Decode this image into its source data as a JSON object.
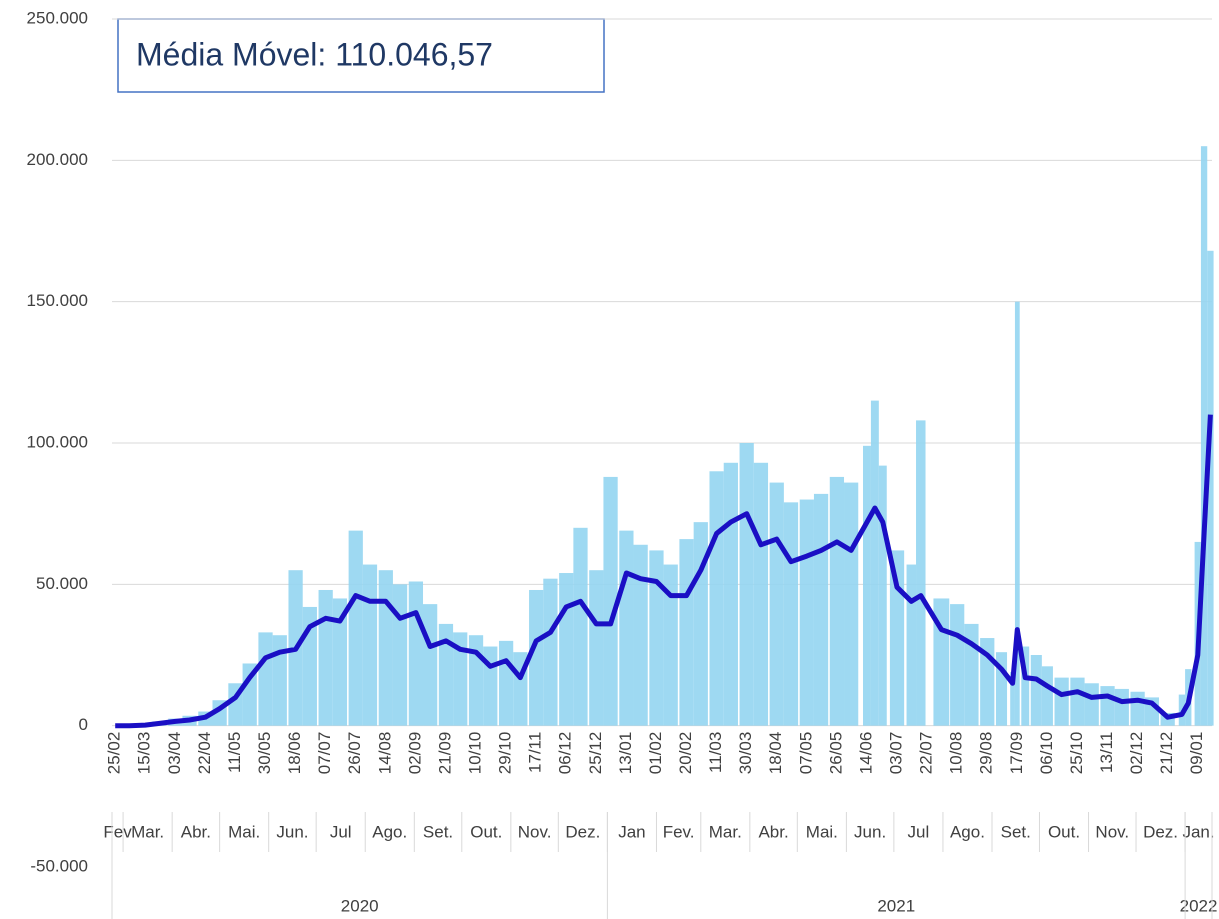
{
  "chart_data": {
    "type": "bar-line",
    "annotation": "Média Móvel: 110.046,57",
    "x": [
      "2020-02-25",
      "2020-03-05",
      "2020-03-15",
      "2020-03-24",
      "2020-04-03",
      "2020-04-12",
      "2020-04-22",
      "2020-05-01",
      "2020-05-11",
      "2020-05-20",
      "2020-05-30",
      "2020-06-08",
      "2020-06-18",
      "2020-06-27",
      "2020-07-07",
      "2020-07-16",
      "2020-07-26",
      "2020-08-04",
      "2020-08-14",
      "2020-08-23",
      "2020-09-02",
      "2020-09-11",
      "2020-09-21",
      "2020-09-30",
      "2020-10-10",
      "2020-10-19",
      "2020-10-29",
      "2020-11-07",
      "2020-11-17",
      "2020-11-26",
      "2020-12-06",
      "2020-12-15",
      "2020-12-25",
      "2021-01-03",
      "2021-01-13",
      "2021-01-22",
      "2021-02-01",
      "2021-02-10",
      "2021-02-20",
      "2021-03-01",
      "2021-03-11",
      "2021-03-20",
      "2021-03-30",
      "2021-04-08",
      "2021-04-18",
      "2021-04-27",
      "2021-05-07",
      "2021-05-16",
      "2021-05-26",
      "2021-06-04",
      "2021-06-14",
      "2021-06-19",
      "2021-06-24",
      "2021-07-03",
      "2021-07-12",
      "2021-07-18",
      "2021-07-31",
      "2021-08-10",
      "2021-08-19",
      "2021-08-29",
      "2021-09-07",
      "2021-09-14",
      "2021-09-17",
      "2021-09-22",
      "2021-09-29",
      "2021-10-06",
      "2021-10-15",
      "2021-10-25",
      "2021-11-03",
      "2021-11-13",
      "2021-11-22",
      "2021-12-02",
      "2021-12-11",
      "2021-12-21",
      "2021-12-30",
      "2022-01-03",
      "2022-01-09",
      "2022-01-13",
      "2022-01-17"
    ],
    "series": [
      {
        "kind": "bar",
        "color": "#93d5f1",
        "values": [
          0,
          0,
          400,
          1500,
          2500,
          3500,
          5000,
          9000,
          15000,
          22000,
          33000,
          32000,
          55000,
          42000,
          48000,
          45000,
          69000,
          57000,
          55000,
          50000,
          51000,
          43000,
          36000,
          33000,
          32000,
          28000,
          30000,
          26000,
          48000,
          52000,
          54000,
          70000,
          55000,
          88000,
          69000,
          64000,
          62000,
          57000,
          66000,
          72000,
          90000,
          93000,
          100000,
          93000,
          86000,
          79000,
          80000,
          82000,
          88000,
          86000,
          99000,
          115000,
          92000,
          62000,
          57000,
          108000,
          45000,
          43000,
          36000,
          31000,
          26000,
          19000,
          150000,
          28000,
          25000,
          21000,
          17000,
          17000,
          15000,
          14000,
          13000,
          12000,
          10000,
          4500,
          11000,
          20000,
          65000,
          205000,
          168000
        ]
      },
      {
        "kind": "line",
        "color": "#1a0fc4",
        "values": [
          0,
          0,
          200,
          800,
          1500,
          2000,
          3000,
          6000,
          10000,
          17000,
          24000,
          26000,
          27000,
          35000,
          38000,
          37000,
          46000,
          44000,
          44000,
          38000,
          40000,
          28000,
          30000,
          27000,
          26000,
          21000,
          23000,
          17000,
          30000,
          33000,
          42000,
          44000,
          36000,
          36000,
          54000,
          52000,
          51000,
          46000,
          46000,
          55000,
          68000,
          72000,
          75000,
          64000,
          66000,
          58000,
          60000,
          62000,
          65000,
          62000,
          72000,
          77000,
          72000,
          49000,
          44000,
          46000,
          34000,
          32000,
          29000,
          25000,
          20000,
          15000,
          34000,
          17000,
          16500,
          14000,
          11000,
          12000,
          10000,
          10500,
          8500,
          9000,
          8000,
          3000,
          4000,
          8000,
          25000,
          68000,
          110046.57
        ]
      }
    ],
    "xlim": [
      "2020-02-23",
      "2022-01-18"
    ],
    "xticks": [
      {
        "value": "2020-02-25",
        "label": "25/02"
      },
      {
        "value": "2020-03-15",
        "label": "15/03"
      },
      {
        "value": "2020-04-03",
        "label": "03/04"
      },
      {
        "value": "2020-04-22",
        "label": "22/04"
      },
      {
        "value": "2020-05-11",
        "label": "11/05"
      },
      {
        "value": "2020-05-30",
        "label": "30/05"
      },
      {
        "value": "2020-06-18",
        "label": "18/06"
      },
      {
        "value": "2020-07-07",
        "label": "07/07"
      },
      {
        "value": "2020-07-26",
        "label": "26/07"
      },
      {
        "value": "2020-08-14",
        "label": "14/08"
      },
      {
        "value": "2020-09-02",
        "label": "02/09"
      },
      {
        "value": "2020-09-21",
        "label": "21/09"
      },
      {
        "value": "2020-10-10",
        "label": "10/10"
      },
      {
        "value": "2020-10-29",
        "label": "29/10"
      },
      {
        "value": "2020-11-17",
        "label": "17/11"
      },
      {
        "value": "2020-12-06",
        "label": "06/12"
      },
      {
        "value": "2020-12-25",
        "label": "25/12"
      },
      {
        "value": "2021-01-13",
        "label": "13/01"
      },
      {
        "value": "2021-02-01",
        "label": "01/02"
      },
      {
        "value": "2021-02-20",
        "label": "20/02"
      },
      {
        "value": "2021-03-11",
        "label": "11/03"
      },
      {
        "value": "2021-03-30",
        "label": "30/03"
      },
      {
        "value": "2021-04-18",
        "label": "18/04"
      },
      {
        "value": "2021-05-07",
        "label": "07/05"
      },
      {
        "value": "2021-05-26",
        "label": "26/05"
      },
      {
        "value": "2021-06-14",
        "label": "14/06"
      },
      {
        "value": "2021-07-03",
        "label": "03/07"
      },
      {
        "value": "2021-07-22",
        "label": "22/07"
      },
      {
        "value": "2021-08-10",
        "label": "10/08"
      },
      {
        "value": "2021-08-29",
        "label": "29/08"
      },
      {
        "value": "2021-09-17",
        "label": "17/09"
      },
      {
        "value": "2021-10-06",
        "label": "06/10"
      },
      {
        "value": "2021-10-25",
        "label": "25/10"
      },
      {
        "value": "2021-11-13",
        "label": "13/11"
      },
      {
        "value": "2021-12-02",
        "label": "02/12"
      },
      {
        "value": "2021-12-21",
        "label": "21/12"
      },
      {
        "value": "2022-01-09",
        "label": "09/01"
      }
    ],
    "months": [
      {
        "value": "2020-02",
        "label": "Fev"
      },
      {
        "value": "2020-03",
        "label": "Mar."
      },
      {
        "value": "2020-04",
        "label": "Abr."
      },
      {
        "value": "2020-05",
        "label": "Mai."
      },
      {
        "value": "2020-06",
        "label": "Jun."
      },
      {
        "value": "2020-07",
        "label": "Jul"
      },
      {
        "value": "2020-08",
        "label": "Ago."
      },
      {
        "value": "2020-09",
        "label": "Set."
      },
      {
        "value": "2020-10",
        "label": "Out."
      },
      {
        "value": "2020-11",
        "label": "Nov."
      },
      {
        "value": "2020-12",
        "label": "Dez."
      },
      {
        "value": "2021-01",
        "label": "Jan"
      },
      {
        "value": "2021-02",
        "label": "Fev."
      },
      {
        "value": "2021-03",
        "label": "Mar."
      },
      {
        "value": "2021-04",
        "label": "Abr."
      },
      {
        "value": "2021-05",
        "label": "Mai."
      },
      {
        "value": "2021-06",
        "label": "Jun."
      },
      {
        "value": "2021-07",
        "label": "Jul"
      },
      {
        "value": "2021-08",
        "label": "Ago."
      },
      {
        "value": "2021-09",
        "label": "Set."
      },
      {
        "value": "2021-10",
        "label": "Out."
      },
      {
        "value": "2021-11",
        "label": "Nov."
      },
      {
        "value": "2021-12",
        "label": "Dez."
      },
      {
        "value": "2022-01",
        "label": "Jan."
      }
    ],
    "years": [
      "2020",
      "2021",
      "2022"
    ],
    "ylim": [
      -50000,
      250000
    ],
    "yticks": [
      {
        "value": -50000,
        "label": "-50.000"
      },
      0,
      {
        "value": 50000,
        "label": "50.000"
      },
      {
        "value": 100000,
        "label": "100.000"
      },
      {
        "value": 150000,
        "label": "150.000"
      },
      {
        "value": 200000,
        "label": "200.000"
      },
      {
        "value": 250000,
        "label": "250.000"
      }
    ],
    "grid": true
  }
}
